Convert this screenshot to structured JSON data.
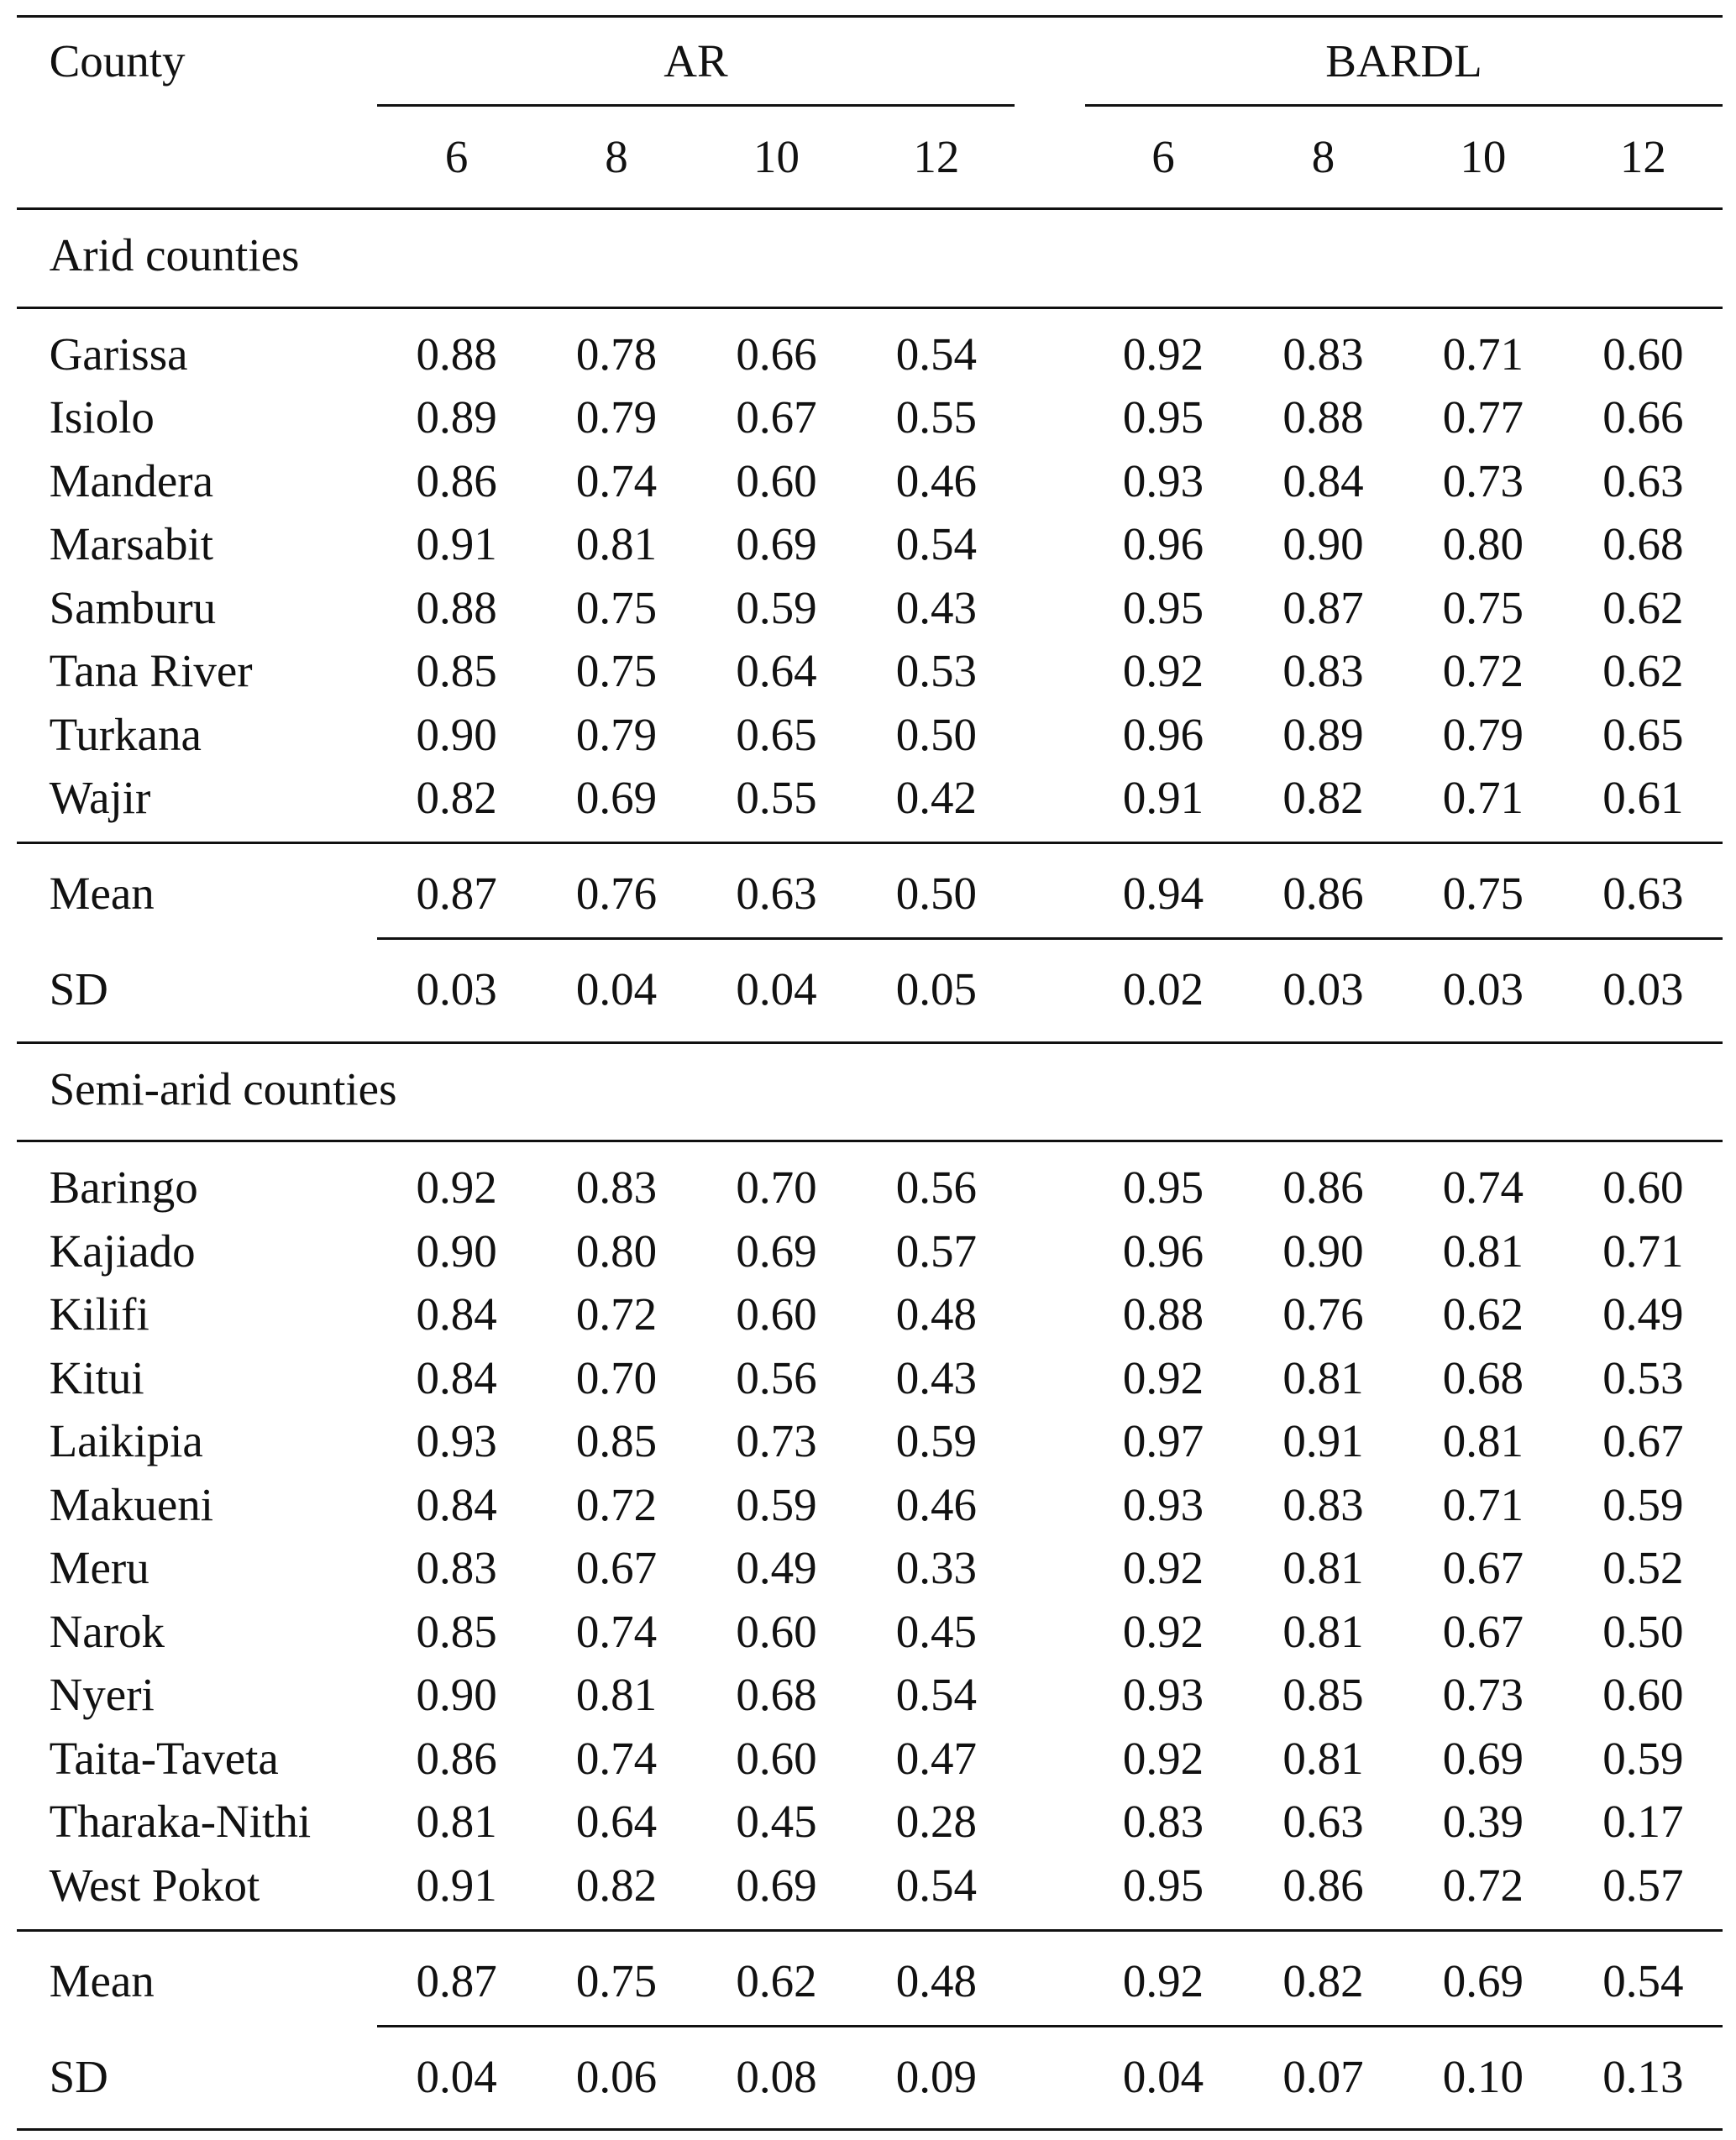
{
  "table": {
    "header": {
      "first": "County",
      "groups": [
        "AR",
        "BARDL"
      ],
      "columns": [
        "6",
        "8",
        "10",
        "12",
        "6",
        "8",
        "10",
        "12"
      ]
    },
    "sections": [
      {
        "title": "Arid counties",
        "rows": [
          [
            "Garissa",
            "0.88",
            "0.78",
            "0.66",
            "0.54",
            "0.92",
            "0.83",
            "0.71",
            "0.60"
          ],
          [
            "Isiolo",
            "0.89",
            "0.79",
            "0.67",
            "0.55",
            "0.95",
            "0.88",
            "0.77",
            "0.66"
          ],
          [
            "Mandera",
            "0.86",
            "0.74",
            "0.60",
            "0.46",
            "0.93",
            "0.84",
            "0.73",
            "0.63"
          ],
          [
            "Marsabit",
            "0.91",
            "0.81",
            "0.69",
            "0.54",
            "0.96",
            "0.90",
            "0.80",
            "0.68"
          ],
          [
            "Samburu",
            "0.88",
            "0.75",
            "0.59",
            "0.43",
            "0.95",
            "0.87",
            "0.75",
            "0.62"
          ],
          [
            "Tana River",
            "0.85",
            "0.75",
            "0.64",
            "0.53",
            "0.92",
            "0.83",
            "0.72",
            "0.62"
          ],
          [
            "Turkana",
            "0.90",
            "0.79",
            "0.65",
            "0.50",
            "0.96",
            "0.89",
            "0.79",
            "0.65"
          ],
          [
            "Wajir",
            "0.82",
            "0.69",
            "0.55",
            "0.42",
            "0.91",
            "0.82",
            "0.71",
            "0.61"
          ]
        ],
        "summary": [
          [
            "Mean",
            "0.87",
            "0.76",
            "0.63",
            "0.50",
            "0.94",
            "0.86",
            "0.75",
            "0.63"
          ],
          [
            "SD",
            "0.03",
            "0.04",
            "0.04",
            "0.05",
            "0.02",
            "0.03",
            "0.03",
            "0.03"
          ]
        ]
      },
      {
        "title": "Semi-arid counties",
        "rows": [
          [
            "Baringo",
            "0.92",
            "0.83",
            "0.70",
            "0.56",
            "0.95",
            "0.86",
            "0.74",
            "0.60"
          ],
          [
            "Kajiado",
            "0.90",
            "0.80",
            "0.69",
            "0.57",
            "0.96",
            "0.90",
            "0.81",
            "0.71"
          ],
          [
            "Kilifi",
            "0.84",
            "0.72",
            "0.60",
            "0.48",
            "0.88",
            "0.76",
            "0.62",
            "0.49"
          ],
          [
            "Kitui",
            "0.84",
            "0.70",
            "0.56",
            "0.43",
            "0.92",
            "0.81",
            "0.68",
            "0.53"
          ],
          [
            "Laikipia",
            "0.93",
            "0.85",
            "0.73",
            "0.59",
            "0.97",
            "0.91",
            "0.81",
            "0.67"
          ],
          [
            "Makueni",
            "0.84",
            "0.72",
            "0.59",
            "0.46",
            "0.93",
            "0.83",
            "0.71",
            "0.59"
          ],
          [
            "Meru",
            "0.83",
            "0.67",
            "0.49",
            "0.33",
            "0.92",
            "0.81",
            "0.67",
            "0.52"
          ],
          [
            "Narok",
            "0.85",
            "0.74",
            "0.60",
            "0.45",
            "0.92",
            "0.81",
            "0.67",
            "0.50"
          ],
          [
            "Nyeri",
            "0.90",
            "0.81",
            "0.68",
            "0.54",
            "0.93",
            "0.85",
            "0.73",
            "0.60"
          ],
          [
            "Taita-Taveta",
            "0.86",
            "0.74",
            "0.60",
            "0.47",
            "0.92",
            "0.81",
            "0.69",
            "0.59"
          ],
          [
            "Tharaka-Nithi",
            "0.81",
            "0.64",
            "0.45",
            "0.28",
            "0.83",
            "0.63",
            "0.39",
            "0.17"
          ],
          [
            "West Pokot",
            "0.91",
            "0.82",
            "0.69",
            "0.54",
            "0.95",
            "0.86",
            "0.72",
            "0.57"
          ]
        ],
        "summary": [
          [
            "Mean",
            "0.87",
            "0.75",
            "0.62",
            "0.48",
            "0.92",
            "0.82",
            "0.69",
            "0.54"
          ],
          [
            "SD",
            "0.04",
            "0.06",
            "0.08",
            "0.09",
            "0.04",
            "0.07",
            "0.10",
            "0.13"
          ]
        ]
      }
    ]
  }
}
